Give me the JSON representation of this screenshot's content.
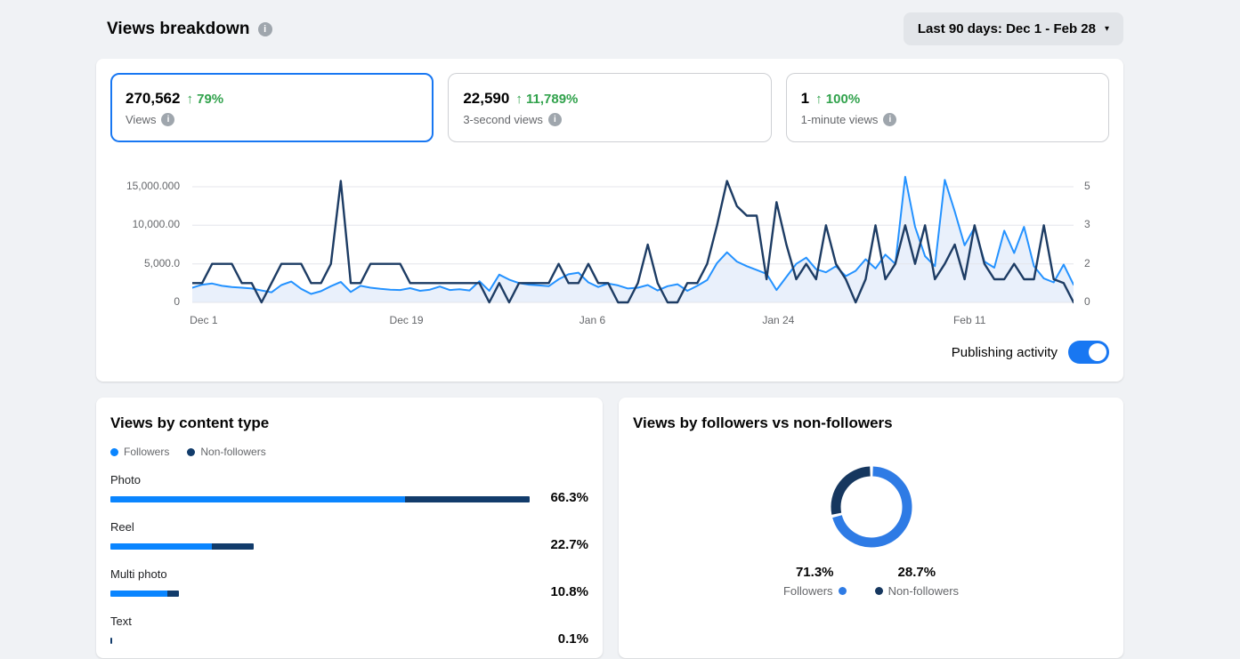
{
  "page": {
    "title": "Views breakdown",
    "date_range": "Last 90 days: Dec 1 - Feb 28"
  },
  "icons": {
    "info": "i",
    "dropdown_caret": "▾",
    "up_arrow": "↑"
  },
  "colors": {
    "page_bg": "#f0f2f5",
    "accent_blue": "#1877f2",
    "positive_green": "#31a24c",
    "chart_blue": "#2492ff",
    "chart_navy": "#1d3c64",
    "chart_area_fill": "#e9f0fb",
    "bar_blue": "#0a85ff",
    "bar_navy": "#123c6b",
    "donut_blue": "#2e7be5",
    "donut_navy": "#16375f"
  },
  "stat_cards": [
    {
      "value": "270,562",
      "delta": "79%",
      "label": "Views",
      "selected": true
    },
    {
      "value": "22,590",
      "delta": "11,789%",
      "label": "3-second views",
      "selected": false
    },
    {
      "value": "1",
      "delta": "100%",
      "label": "1-minute views",
      "selected": false
    }
  ],
  "toggle": {
    "label": "Publishing activity",
    "state": "on"
  },
  "chart_data": {
    "type": "line",
    "title": "Views over time with publishing activity",
    "x_labels": [
      "Dec 1",
      "Dec 19",
      "Jan 6",
      "Jan 24",
      "Feb 11"
    ],
    "x_range": [
      "Dec 1",
      "Feb 28"
    ],
    "grid": true,
    "legend_position": "none",
    "left_axis": {
      "ticks": [
        "15,000.000",
        "10,000.00",
        "5,000.0",
        "0"
      ],
      "gridline_values": [
        15000,
        10000,
        5000,
        0
      ],
      "max_plot": 17000
    },
    "right_axis": {
      "ticks": [
        "5",
        "3",
        "2",
        "0"
      ],
      "gridline_values": [
        5,
        3,
        2,
        0
      ]
    },
    "series": [
      {
        "name": "Views",
        "axis": "left",
        "style": "area-line",
        "values": [
          1900,
          2300,
          2450,
          2150,
          2000,
          1900,
          1800,
          1550,
          1300,
          2250,
          2700,
          1750,
          1100,
          1450,
          2100,
          2650,
          1350,
          2150,
          1900,
          1750,
          1650,
          1600,
          1850,
          1500,
          1650,
          2050,
          1600,
          1700,
          1550,
          2750,
          1500,
          3600,
          2950,
          2500,
          2300,
          2200,
          2100,
          3000,
          3650,
          3850,
          2600,
          2000,
          2450,
          2200,
          1800,
          1900,
          2250,
          1550,
          2100,
          2350,
          1500,
          2150,
          2900,
          5100,
          6500,
          5300,
          4700,
          4200,
          3700,
          1600,
          3300,
          5000,
          5800,
          4300,
          3900,
          4700,
          3400,
          4100,
          5600,
          4400,
          6200,
          5000,
          16300,
          9800,
          6000,
          4700,
          15900,
          11800,
          7400,
          9700,
          5300,
          4500,
          9300,
          6400,
          9800,
          4700,
          3100,
          2600,
          4900,
          2300
        ]
      },
      {
        "name": "Publishing activity",
        "axis": "right",
        "style": "line",
        "values": [
          1,
          1,
          2,
          2,
          2,
          1,
          1,
          0,
          1,
          2,
          2,
          2,
          1,
          1,
          2,
          5.3,
          1,
          1,
          2,
          2,
          2,
          2,
          1,
          1,
          1,
          1,
          1,
          1,
          1,
          1,
          0,
          1,
          0,
          1,
          1,
          1,
          1,
          2,
          1,
          1,
          2,
          1,
          1,
          0,
          0,
          1,
          2.5,
          1,
          0,
          0,
          1,
          1,
          2,
          3,
          5.3,
          4,
          3.5,
          3.5,
          1.2,
          4.2,
          2.5,
          1.2,
          2,
          1.2,
          3,
          2,
          1.2,
          0,
          1.2,
          3,
          1.2,
          2,
          3,
          2,
          3,
          1.2,
          2,
          2.5,
          1.2,
          3,
          2,
          1.2,
          1.2,
          2,
          1.2,
          1.2,
          3,
          1.2,
          1,
          0
        ]
      }
    ]
  },
  "content_type_card": {
    "title": "Views by content type",
    "legend": [
      {
        "label": "Followers",
        "color": "#0a85ff"
      },
      {
        "label": "Non-followers",
        "color": "#123c6b"
      }
    ],
    "rows": [
      {
        "label": "Photo",
        "value": "66.3%",
        "total_pct": 66.3,
        "followers_split_pct": 70.3
      },
      {
        "label": "Reel",
        "value": "22.7%",
        "total_pct": 22.7,
        "followers_split_pct": 70.6
      },
      {
        "label": "Multi photo",
        "value": "10.8%",
        "total_pct": 10.8,
        "followers_split_pct": 83
      },
      {
        "label": "Text",
        "value": "0.1%",
        "total_pct": 0.1,
        "followers_split_pct": 0
      }
    ]
  },
  "followers_card": {
    "title": "Views by followers vs non-followers",
    "chart_data": {
      "type": "pie",
      "donut": true,
      "slices": [
        {
          "label": "Followers",
          "value_pct": 71.3,
          "color": "#2e7be5"
        },
        {
          "label": "Non-followers",
          "value_pct": 28.7,
          "color": "#16375f"
        }
      ]
    },
    "legend": [
      {
        "value": "71.3%",
        "label": "Followers",
        "dot_side": "right",
        "color": "#2e7be5"
      },
      {
        "value": "28.7%",
        "label": "Non-followers",
        "dot_side": "left",
        "color": "#16375f"
      }
    ]
  }
}
